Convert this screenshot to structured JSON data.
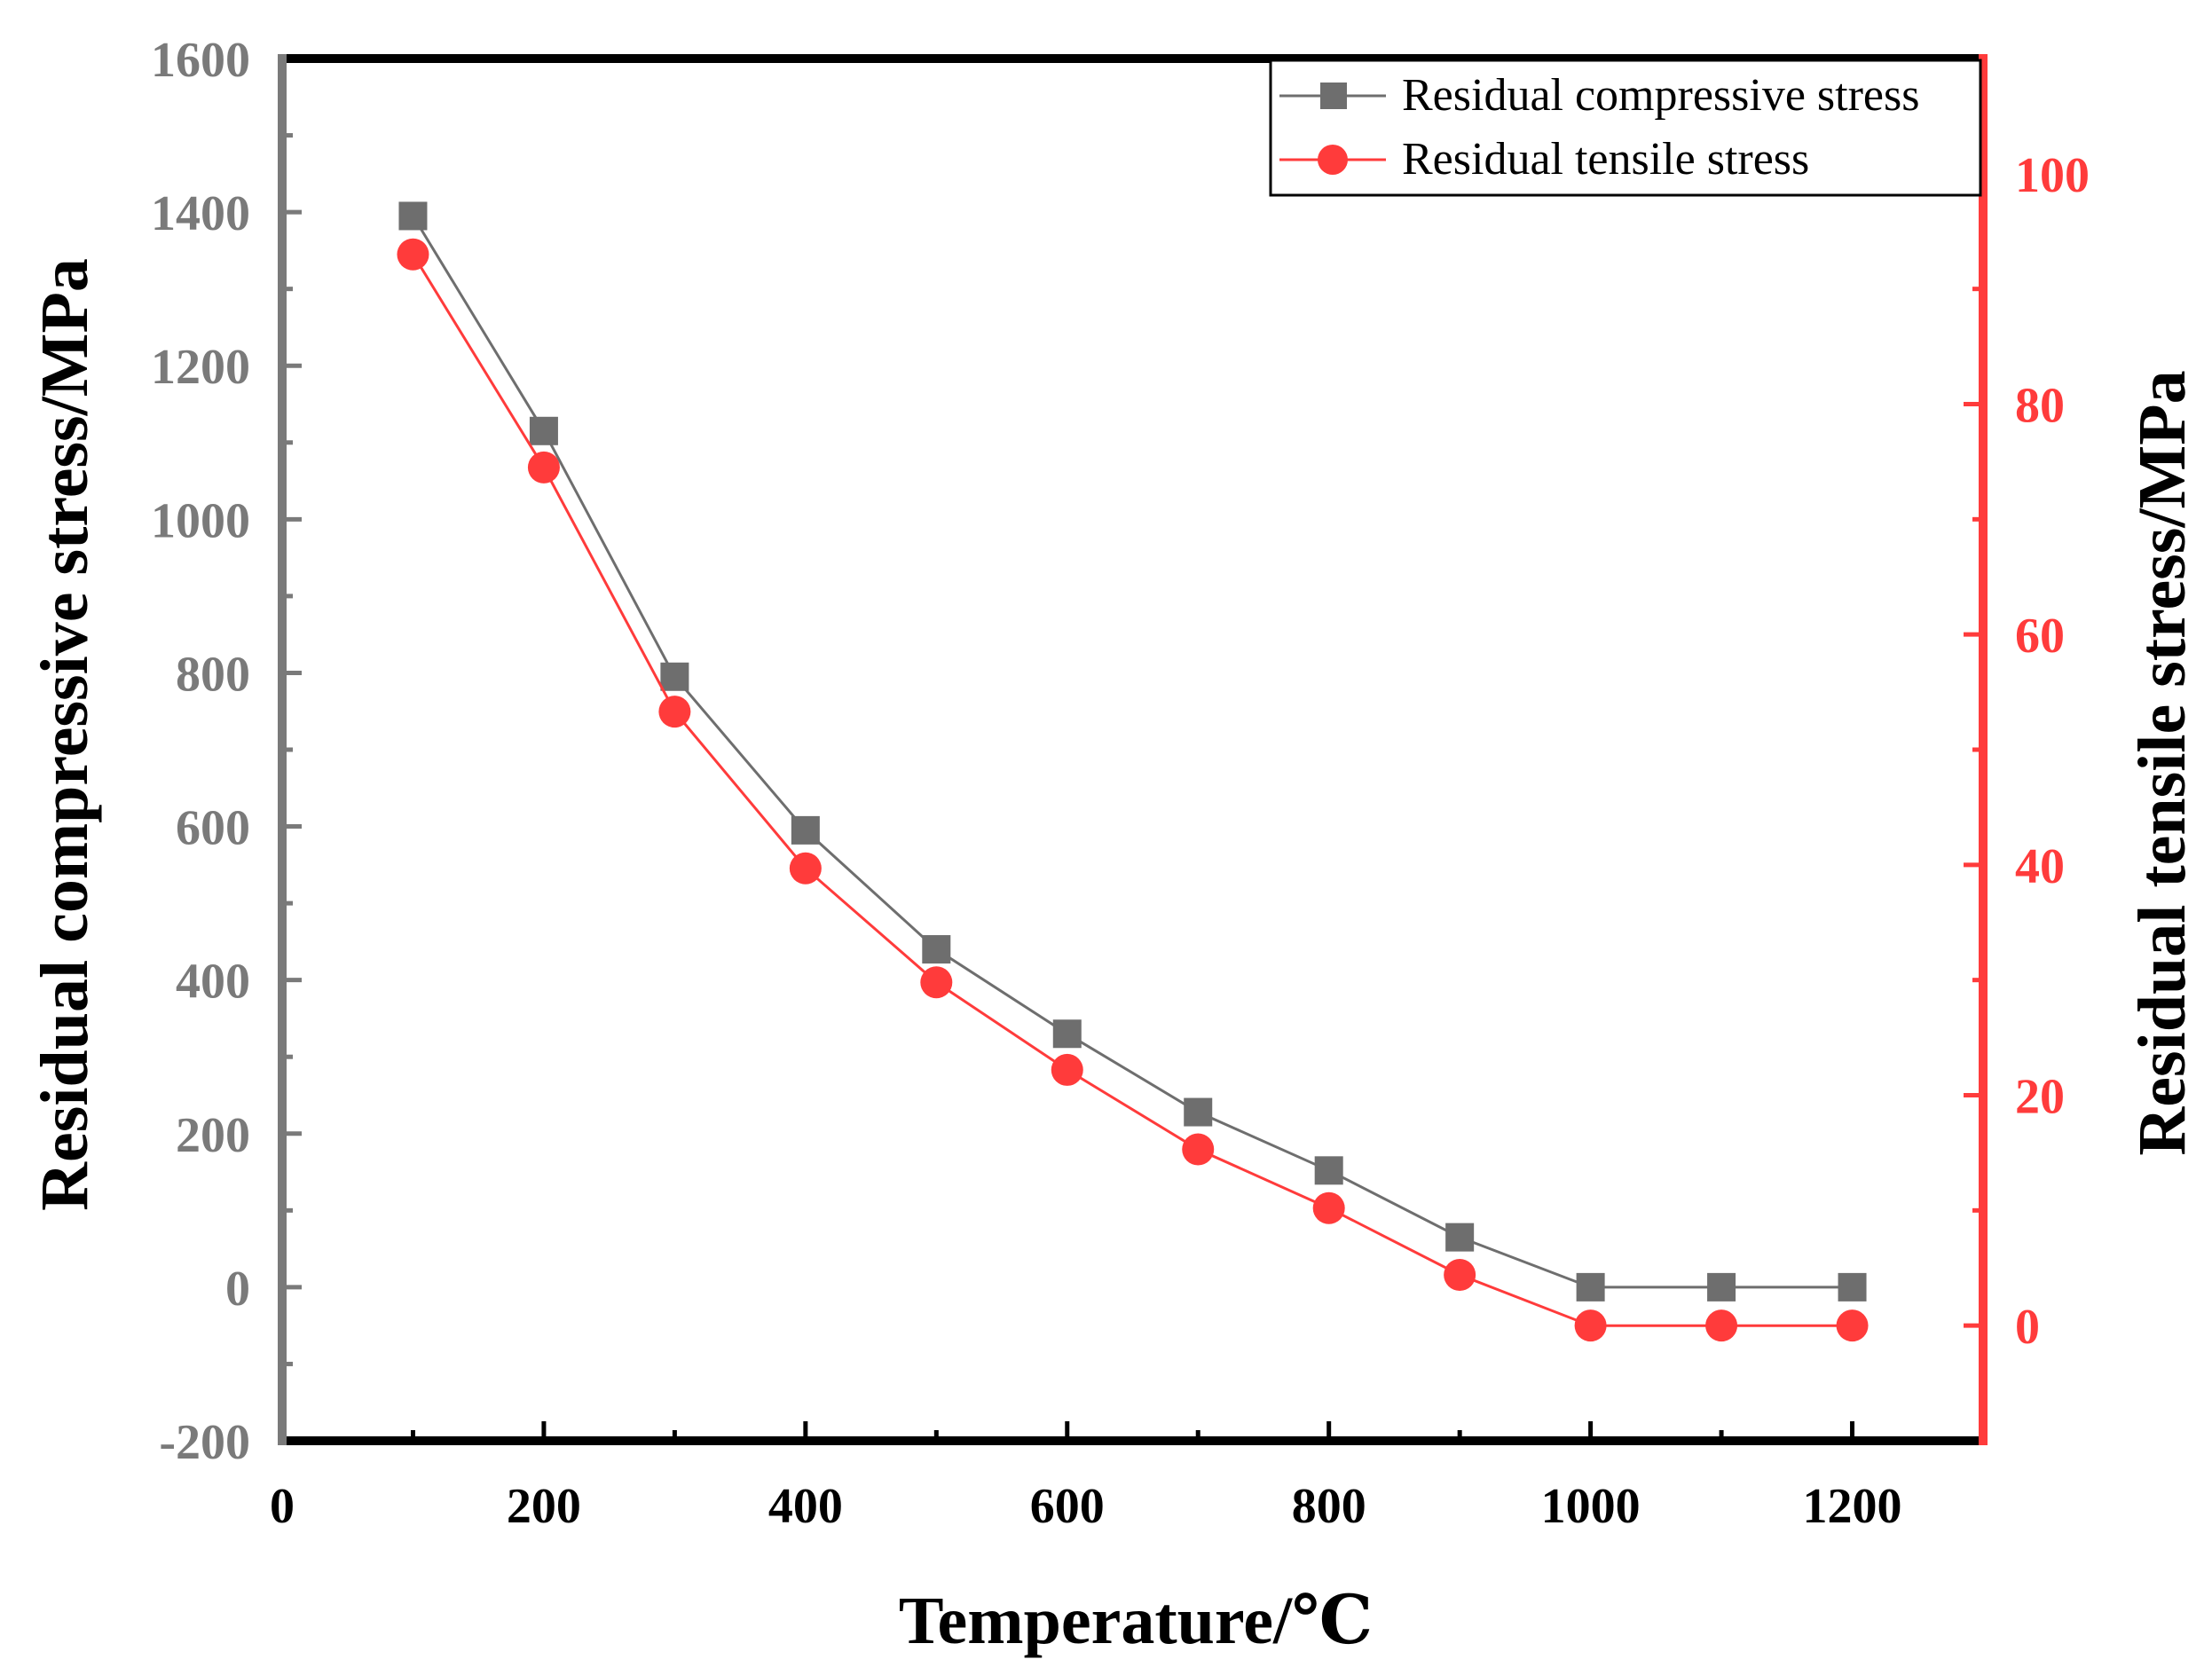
{
  "chart_data": {
    "type": "line",
    "xlabel": "Temperature/℃",
    "ylabel_left": "Residual compressive stress/MPa",
    "ylabel_right": "Residual tensile stress/MPa",
    "xlim": [
      0,
      1300
    ],
    "ylim_left": [
      -200,
      1600
    ],
    "ylim_right": [
      -10,
      110
    ],
    "x_ticks": [
      0,
      200,
      400,
      600,
      800,
      1000,
      1200
    ],
    "x_tick_labels": [
      "0",
      "200",
      "400",
      "600",
      "800",
      "1000",
      "1200"
    ],
    "y_left_ticks": [
      -200,
      0,
      200,
      400,
      600,
      800,
      1000,
      1200,
      1400,
      1600
    ],
    "y_left_tick_labels": [
      "-200",
      "0",
      "200",
      "400",
      "600",
      "800",
      "1000",
      "1200",
      "1400",
      "1600"
    ],
    "y_right_ticks": [
      0,
      20,
      40,
      60,
      80,
      100
    ],
    "y_right_tick_labels": [
      "0",
      "20",
      "40",
      "60",
      "80",
      "100"
    ],
    "x": [
      100,
      200,
      300,
      400,
      500,
      600,
      700,
      800,
      900,
      1000,
      1100,
      1200
    ],
    "series": [
      {
        "name": "Residual compressive stress",
        "axis": "left",
        "marker": "square",
        "color": "#6e6e6e",
        "values": [
          1395,
          1115,
          795,
          595,
          440,
          330,
          228,
          152,
          65,
          0,
          0,
          0
        ]
      },
      {
        "name": "Residual tensile stress",
        "axis": "right",
        "marker": "circle",
        "color": "#ff3b3b",
        "values": [
          93,
          74.5,
          53.3,
          39.7,
          29.8,
          22.2,
          15.3,
          10.2,
          4.4,
          0,
          0,
          0
        ]
      }
    ],
    "legend_position": "top-right",
    "colors": {
      "left_axis": "#7a7a7a",
      "right_axis": "#ff3b3b",
      "frame": "#000000"
    }
  }
}
